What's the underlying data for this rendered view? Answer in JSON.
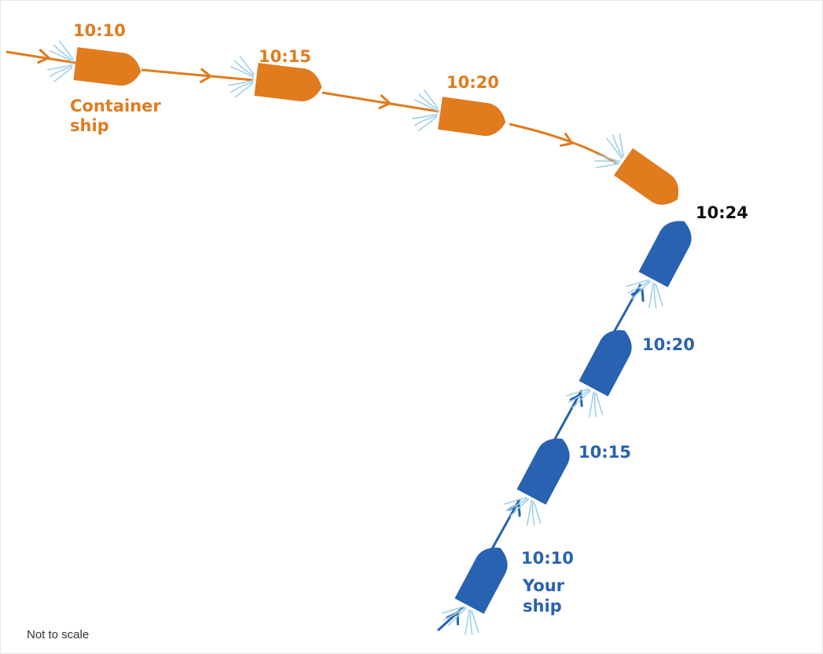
{
  "colors": {
    "container": "#e07b1e",
    "your_ship": "#2862b0",
    "meeting": "#111111",
    "wake": "#9fd0e8",
    "note": "#333333"
  },
  "container_ship": {
    "label_line1": "Container",
    "label_line2": "ship",
    "times": [
      "10:10",
      "10:15",
      "10:20"
    ]
  },
  "your_ship": {
    "label_line1": "Your",
    "label_line2": "ship",
    "times": [
      "10:10",
      "10:15",
      "10:20"
    ]
  },
  "meeting_time": "10:24",
  "note": "Not to scale"
}
